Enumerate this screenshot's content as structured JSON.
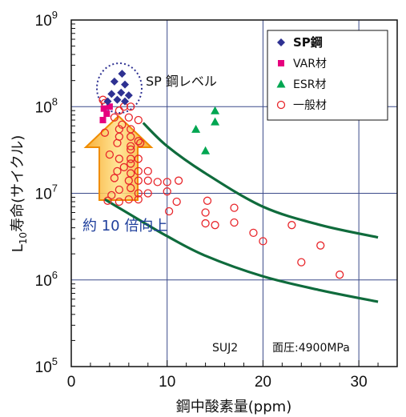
{
  "chart_data": {
    "type": "scatter",
    "xscale": "linear",
    "yscale": "log",
    "xlim": [
      0,
      34
    ],
    "ylim": [
      100000,
      1000000000
    ],
    "x_ticks": [
      "0",
      "10",
      "20",
      "30"
    ],
    "y_tick_base": "10",
    "y_tick_exponents": [
      "5",
      "6",
      "7",
      "8",
      "9"
    ],
    "xlabel": "鋼中酸素量(ppm)",
    "ylabel": {
      "main": "L",
      "sub": "10",
      "rest": "寿命(サイクル)"
    },
    "grid": true,
    "legend_position": "top-right",
    "series": [
      {
        "name": "SP鋼",
        "marker": "diamond",
        "color": "#2e3192",
        "points": [
          [
            5.3,
            240000000
          ],
          [
            4.5,
            195000000
          ],
          [
            5.6,
            180000000
          ],
          [
            4.2,
            140000000
          ],
          [
            5.2,
            145000000
          ],
          [
            6.0,
            135000000
          ],
          [
            4.8,
            120000000
          ],
          [
            5.6,
            115000000
          ],
          [
            3.8,
            115000000
          ]
        ]
      },
      {
        "name": "VAR材",
        "marker": "square",
        "color": "#e6007e",
        "points": [
          [
            3.4,
            95000000
          ],
          [
            4.0,
            100000000
          ],
          [
            3.7,
            83000000
          ],
          [
            3.3,
            70000000
          ]
        ]
      },
      {
        "name": "ESR材",
        "marker": "triangle",
        "color": "#00a651",
        "points": [
          [
            15.0,
            90000000
          ],
          [
            15.0,
            67000000
          ],
          [
            13.0,
            55000000
          ],
          [
            14.0,
            31000000
          ]
        ]
      },
      {
        "name": "一般材",
        "marker": "circle-open",
        "color": "#e8262b",
        "points": [
          [
            3.3,
            120000000
          ],
          [
            3.5,
            110000000
          ],
          [
            5.5,
            100000000
          ],
          [
            6.2,
            100000000
          ],
          [
            5.0,
            90000000
          ],
          [
            4.5,
            75000000
          ],
          [
            6.0,
            75000000
          ],
          [
            7.0,
            70000000
          ],
          [
            5.3,
            62000000
          ],
          [
            5.0,
            55000000
          ],
          [
            6.2,
            55000000
          ],
          [
            3.5,
            50000000
          ],
          [
            5.0,
            45000000
          ],
          [
            6.2,
            45000000
          ],
          [
            4.8,
            38000000
          ],
          [
            6.2,
            35000000
          ],
          [
            7.0,
            40000000
          ],
          [
            7.2,
            38000000
          ],
          [
            6.2,
            32000000
          ],
          [
            4.0,
            28000000
          ],
          [
            5.0,
            25000000
          ],
          [
            6.2,
            25000000
          ],
          [
            7.0,
            25000000
          ],
          [
            6.2,
            22000000
          ],
          [
            5.5,
            20000000
          ],
          [
            4.8,
            18000000
          ],
          [
            6.2,
            17000000
          ],
          [
            7.0,
            18000000
          ],
          [
            8.0,
            18000000
          ],
          [
            4.5,
            15000000
          ],
          [
            6.0,
            14000000
          ],
          [
            7.0,
            14000000
          ],
          [
            8.0,
            14000000
          ],
          [
            9.0,
            13500000
          ],
          [
            10.0,
            13500000
          ],
          [
            11.2,
            14000000
          ],
          [
            5.0,
            11000000
          ],
          [
            6.2,
            11500000
          ],
          [
            7.0,
            10000000
          ],
          [
            8.0,
            10000000
          ],
          [
            4.2,
            9500000
          ],
          [
            6.0,
            8500000
          ],
          [
            7.0,
            8500000
          ],
          [
            3.8,
            8200000
          ],
          [
            5.0,
            8000000
          ],
          [
            10.0,
            10500000
          ],
          [
            11.0,
            8000000
          ],
          [
            14.2,
            8200000
          ],
          [
            17.0,
            6800000
          ],
          [
            14.0,
            6000000
          ],
          [
            10.2,
            6200000
          ],
          [
            14.0,
            4500000
          ],
          [
            15.0,
            4300000
          ],
          [
            17.0,
            4600000
          ],
          [
            19.0,
            3500000
          ],
          [
            20.0,
            2800000
          ],
          [
            23.0,
            4300000
          ],
          [
            24.0,
            1600000
          ],
          [
            26.0,
            2500000
          ],
          [
            28.0,
            1150000
          ]
        ]
      }
    ],
    "curves": [
      {
        "color": "#0f6b3c",
        "points": [
          [
            7.5,
            65000000
          ],
          [
            10,
            35000000
          ],
          [
            14,
            17000000
          ],
          [
            20,
            7000000
          ],
          [
            26,
            4300000
          ],
          [
            32,
            3100000
          ]
        ]
      },
      {
        "color": "#0f6b3c",
        "points": [
          [
            3.5,
            8500000
          ],
          [
            7,
            5000000
          ],
          [
            10,
            3200000
          ],
          [
            14,
            1900000
          ],
          [
            20,
            1100000
          ],
          [
            26,
            760000
          ],
          [
            32,
            560000
          ]
        ]
      }
    ],
    "annotations": {
      "sp_level": "SP 鋼レベル",
      "improvement": "約 10 倍向上",
      "material": "SUJ2",
      "pressure": "面圧:4900MPa"
    }
  }
}
